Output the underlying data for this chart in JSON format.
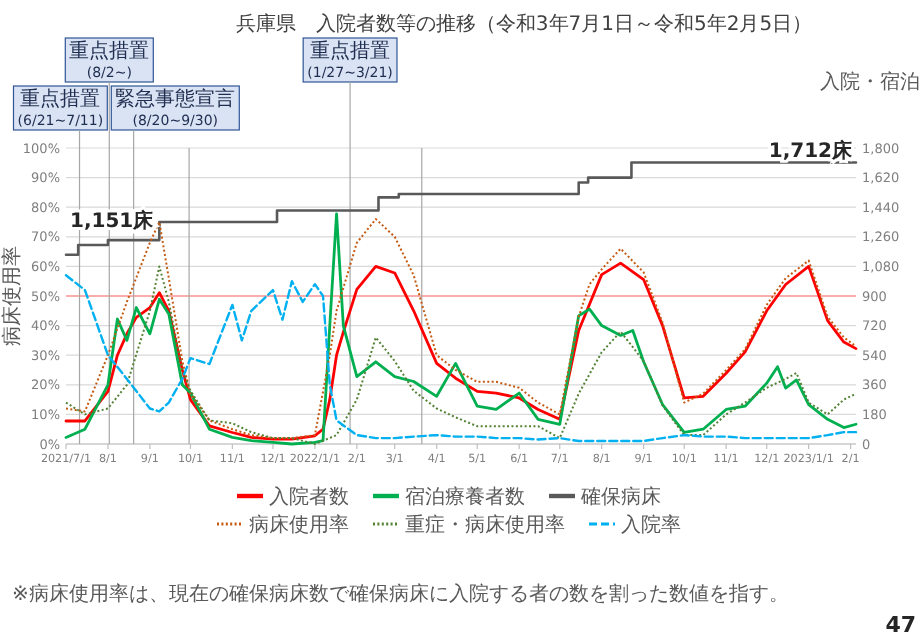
{
  "chart_data": {
    "type": "line",
    "title": "兵庫県　入院者数等の推移（令和3年7月1日～令和5年2月5日）",
    "ylabel": "病床使用率",
    "y2label": "入院・宿泊",
    "xlim": [
      "2021-07-01",
      "2023-02-05"
    ],
    "ylim": [
      0,
      100
    ],
    "yticks": [
      {
        "value": 0,
        "label": "0%"
      },
      {
        "value": 10,
        "label": "10%"
      },
      {
        "value": 20,
        "label": "20%"
      },
      {
        "value": 30,
        "label": "30%"
      },
      {
        "value": 40,
        "label": "40%"
      },
      {
        "value": 50,
        "label": "50%"
      },
      {
        "value": 60,
        "label": "60%"
      },
      {
        "value": 70,
        "label": "70%"
      },
      {
        "value": 80,
        "label": "80%"
      },
      {
        "value": 90,
        "label": "90%"
      },
      {
        "value": 100,
        "label": "100%"
      }
    ],
    "y2lim": [
      0,
      1800
    ],
    "y2ticks": [
      0,
      180,
      360,
      540,
      720,
      900,
      {
        "value": 1080,
        "label": "1,080"
      },
      {
        "value": 1260,
        "label": "1,260"
      },
      {
        "value": 1440,
        "label": "1,440"
      },
      {
        "value": 1620,
        "label": "1,620"
      },
      {
        "value": 1800,
        "label": "1,800"
      }
    ],
    "xticks": [
      {
        "value": "2021-07-01",
        "label": "2021/7/1"
      },
      {
        "value": "2021-08-01",
        "label": "8/1"
      },
      {
        "value": "2021-09-01",
        "label": "9/1"
      },
      {
        "value": "2021-10-01",
        "label": "10/1"
      },
      {
        "value": "2021-11-01",
        "label": "11/1"
      },
      {
        "value": "2021-12-01",
        "label": "12/1"
      },
      {
        "value": "2022-01-01",
        "label": "2022/1/1"
      },
      {
        "value": "2022-02-01",
        "label": "2/1"
      },
      {
        "value": "2022-03-01",
        "label": "3/1"
      },
      {
        "value": "2022-04-01",
        "label": "4/1"
      },
      {
        "value": "2022-05-01",
        "label": "5/1"
      },
      {
        "value": "2022-06-01",
        "label": "6/1"
      },
      {
        "value": "2022-07-01",
        "label": "7/1"
      },
      {
        "value": "2022-08-01",
        "label": "8/1"
      },
      {
        "value": "2022-09-01",
        "label": "9/1"
      },
      {
        "value": "2022-10-01",
        "label": "10/1"
      },
      {
        "value": "2022-11-01",
        "label": "11/1"
      },
      {
        "value": "2022-12-01",
        "label": "12/1"
      },
      {
        "value": "2023-01-01",
        "label": "2023/1/1"
      },
      {
        "value": "2023-02-01",
        "label": "2/1"
      }
    ],
    "grid": "y",
    "legend": "bottom",
    "series": [
      {
        "name": "入院者数",
        "color": "#ff0000",
        "axis": "y2",
        "line_style": "solid",
        "x": [
          "2021-07-01",
          "2021-07-15",
          "2021-08-01",
          "2021-08-08",
          "2021-08-15",
          "2021-08-22",
          "2021-09-01",
          "2021-09-08",
          "2021-09-15",
          "2021-09-25",
          "2021-10-01",
          "2021-10-15",
          "2021-11-01",
          "2021-11-15",
          "2021-12-01",
          "2021-12-15",
          "2022-01-01",
          "2022-01-07",
          "2022-01-12",
          "2022-01-17",
          "2022-01-22",
          "2022-02-01",
          "2022-02-15",
          "2022-03-01",
          "2022-03-15",
          "2022-04-01",
          "2022-04-15",
          "2022-05-01",
          "2022-05-15",
          "2022-06-01",
          "2022-06-15",
          "2022-07-01",
          "2022-07-15",
          "2022-07-23",
          "2022-08-01",
          "2022-08-15",
          "2022-09-01",
          "2022-09-15",
          "2022-10-01",
          "2022-10-15",
          "2022-11-01",
          "2022-11-15",
          "2022-12-01",
          "2022-12-15",
          "2023-01-01",
          "2023-01-15",
          "2023-01-27",
          "2023-02-05"
        ],
        "values": [
          140,
          140,
          320,
          540,
          670,
          770,
          830,
          920,
          810,
          450,
          270,
          110,
          70,
          40,
          30,
          30,
          50,
          90,
          270,
          540,
          680,
          940,
          1080,
          1040,
          810,
          490,
          400,
          320,
          310,
          280,
          210,
          150,
          690,
          850,
          1030,
          1100,
          1000,
          720,
          280,
          290,
          430,
          560,
          810,
          970,
          1080,
          750,
          620,
          580
        ]
      },
      {
        "name": "宿泊療養者数",
        "color": "#00b050",
        "axis": "y2",
        "line_style": "solid",
        "x": [
          "2021-07-01",
          "2021-07-15",
          "2021-08-01",
          "2021-08-08",
          "2021-08-15",
          "2021-08-22",
          "2021-09-01",
          "2021-09-08",
          "2021-09-15",
          "2021-09-25",
          "2021-10-01",
          "2021-10-15",
          "2021-11-01",
          "2021-11-15",
          "2021-12-01",
          "2021-12-15",
          "2022-01-01",
          "2022-01-07",
          "2022-01-12",
          "2022-01-17",
          "2022-01-22",
          "2022-02-01",
          "2022-02-15",
          "2022-03-01",
          "2022-03-15",
          "2022-04-01",
          "2022-04-15",
          "2022-05-01",
          "2022-05-15",
          "2022-06-01",
          "2022-06-15",
          "2022-07-01",
          "2022-07-15",
          "2022-07-23",
          "2022-08-01",
          "2022-08-15",
          "2022-08-24",
          "2022-09-01",
          "2022-09-15",
          "2022-10-01",
          "2022-10-15",
          "2022-11-01",
          "2022-11-15",
          "2022-12-01",
          "2022-12-09",
          "2022-12-15",
          "2022-12-23",
          "2023-01-01",
          "2023-01-15",
          "2023-01-27",
          "2023-02-05"
        ],
        "values": [
          40,
          90,
          360,
          760,
          630,
          830,
          670,
          880,
          790,
          360,
          310,
          90,
          40,
          20,
          10,
          0,
          10,
          20,
          720,
          1400,
          720,
          410,
          500,
          410,
          380,
          290,
          490,
          230,
          210,
          310,
          150,
          120,
          780,
          820,
          720,
          660,
          690,
          500,
          240,
          70,
          90,
          210,
          230,
          370,
          470,
          340,
          390,
          240,
          150,
          100,
          120
        ]
      },
      {
        "name": "確保病床",
        "color": "#595959",
        "axis": "y2",
        "type": "step",
        "line_style": "solid",
        "x": [
          "2021-07-01",
          "2021-07-10",
          "2021-08-01",
          "2021-09-08",
          "2021-12-04",
          "2022-02-17",
          "2022-03-04",
          "2022-07-15",
          "2022-07-22",
          "2022-08-23",
          "2023-02-05"
        ],
        "values": [
          1151,
          1210,
          1240,
          1350,
          1420,
          1500,
          1520,
          1590,
          1620,
          1712,
          1712
        ]
      },
      {
        "name": "病床使用率",
        "color": "#c55a11",
        "line_style": "dotted",
        "x": [
          "2021-07-01",
          "2021-07-15",
          "2021-08-01",
          "2021-08-15",
          "2021-09-01",
          "2021-09-08",
          "2021-09-15",
          "2021-09-25",
          "2021-10-01",
          "2021-10-15",
          "2021-11-01",
          "2021-11-15",
          "2021-12-01",
          "2021-12-15",
          "2022-01-01",
          "2022-01-12",
          "2022-01-17",
          "2022-02-01",
          "2022-02-15",
          "2022-03-01",
          "2022-03-15",
          "2022-04-01",
          "2022-04-15",
          "2022-05-01",
          "2022-05-15",
          "2022-06-01",
          "2022-06-15",
          "2022-07-01",
          "2022-07-15",
          "2022-07-23",
          "2022-08-01",
          "2022-08-15",
          "2022-09-01",
          "2022-09-15",
          "2022-10-01",
          "2022-10-15",
          "2022-11-01",
          "2022-11-15",
          "2022-12-01",
          "2022-12-15",
          "2023-01-01",
          "2023-01-15",
          "2023-01-27",
          "2023-02-05"
        ],
        "values": [
          12,
          11,
          30,
          48,
          68,
          75,
          56,
          28,
          17,
          8,
          5,
          3,
          2,
          2,
          3,
          30,
          45,
          68,
          76,
          70,
          57,
          30,
          25,
          21,
          21,
          19,
          14,
          10,
          43,
          54,
          59,
          66,
          58,
          41,
          14,
          17,
          25,
          32,
          47,
          56,
          62,
          43,
          36,
          33
        ]
      },
      {
        "name": "重症・病床使用率",
        "color": "#548235",
        "line_style": "dotted",
        "x": [
          "2021-07-01",
          "2021-07-15",
          "2021-08-01",
          "2021-08-15",
          "2021-09-01",
          "2021-09-08",
          "2021-09-15",
          "2021-09-25",
          "2021-10-01",
          "2021-10-15",
          "2021-11-01",
          "2021-11-15",
          "2021-12-01",
          "2021-12-15",
          "2022-01-01",
          "2022-01-17",
          "2022-02-01",
          "2022-02-15",
          "2022-03-01",
          "2022-03-15",
          "2022-04-01",
          "2022-04-15",
          "2022-05-01",
          "2022-05-15",
          "2022-06-01",
          "2022-06-15",
          "2022-07-01",
          "2022-07-15",
          "2022-08-01",
          "2022-08-15",
          "2022-09-01",
          "2022-09-15",
          "2022-10-01",
          "2022-10-15",
          "2022-11-01",
          "2022-11-15",
          "2022-12-01",
          "2022-12-15",
          "2022-12-23",
          "2023-01-01",
          "2023-01-15",
          "2023-01-27",
          "2023-02-05"
        ],
        "values": [
          14,
          10,
          12,
          20,
          45,
          60,
          48,
          25,
          18,
          8,
          7,
          4,
          2,
          2,
          0,
          3,
          15,
          36,
          28,
          18,
          12,
          9,
          6,
          6,
          6,
          6,
          2,
          17,
          31,
          38,
          28,
          13,
          3,
          3,
          10,
          14,
          19,
          22,
          24,
          14,
          10,
          15,
          17
        ]
      },
      {
        "name": "入院率",
        "color": "#00b0f0",
        "line_style": "dashed",
        "x": [
          "2021-07-01",
          "2021-07-15",
          "2021-08-01",
          "2021-08-15",
          "2021-09-01",
          "2021-09-08",
          "2021-09-15",
          "2021-09-25",
          "2021-10-01",
          "2021-10-15",
          "2021-11-01",
          "2021-11-08",
          "2021-11-15",
          "2021-12-01",
          "2021-12-08",
          "2021-12-15",
          "2021-12-23",
          "2022-01-01",
          "2022-01-07",
          "2022-01-12",
          "2022-01-17",
          "2022-02-01",
          "2022-02-15",
          "2022-03-01",
          "2022-03-15",
          "2022-04-01",
          "2022-04-15",
          "2022-05-01",
          "2022-05-15",
          "2022-06-01",
          "2022-06-15",
          "2022-07-01",
          "2022-07-15",
          "2022-08-01",
          "2022-08-15",
          "2022-09-01",
          "2022-09-15",
          "2022-10-01",
          "2022-10-15",
          "2022-11-01",
          "2022-11-15",
          "2022-12-01",
          "2022-12-15",
          "2023-01-01",
          "2023-01-15",
          "2023-01-27",
          "2023-02-05"
        ],
        "values": [
          57,
          52,
          30,
          22,
          12,
          11,
          14,
          22,
          29,
          27,
          47,
          35,
          45,
          52,
          42,
          55,
          48,
          54,
          50,
          20,
          8,
          3,
          2,
          2,
          2.5,
          3,
          2.5,
          2.5,
          2,
          2,
          1.5,
          2,
          1,
          1,
          1,
          1,
          2,
          3,
          2.5,
          2.5,
          2,
          2,
          2,
          2,
          3,
          4,
          4
        ]
      }
    ],
    "ref_lines": [
      {
        "axis": "y",
        "value": 50,
        "color": "#ff9999"
      },
      {
        "axis": "x",
        "value": "2021-07-11",
        "label": "重点措置\n(6/21~7/11)",
        "color": "#a6a6a6"
      },
      {
        "axis": "x",
        "value": "2021-08-02",
        "label": "重点措置\n(8/2~)",
        "color": "#a6a6a6"
      },
      {
        "axis": "x",
        "value": "2021-08-20",
        "label": "緊急事態宣言\n(8/20~9/30)",
        "color": "#a6a6a6"
      },
      {
        "axis": "x",
        "value": "2021-09-30",
        "color": "#a6a6a6"
      },
      {
        "axis": "x",
        "value": "2022-01-27",
        "label": "重点措置\n(1/27~3/21)",
        "color": "#a6a6a6"
      },
      {
        "axis": "x",
        "value": "2022-03-21",
        "color": "#a6a6a6"
      }
    ],
    "annotations": [
      {
        "text": "1,151床",
        "x": "2021-07-01",
        "y": 63.9
      },
      {
        "text": "1,712床",
        "x": "2023-02-05",
        "y": 95.1
      },
      "※病床使用率は、現在の確保病床数で確保病床に入院する者の数を割った数値を指す。",
      "47"
    ]
  }
}
